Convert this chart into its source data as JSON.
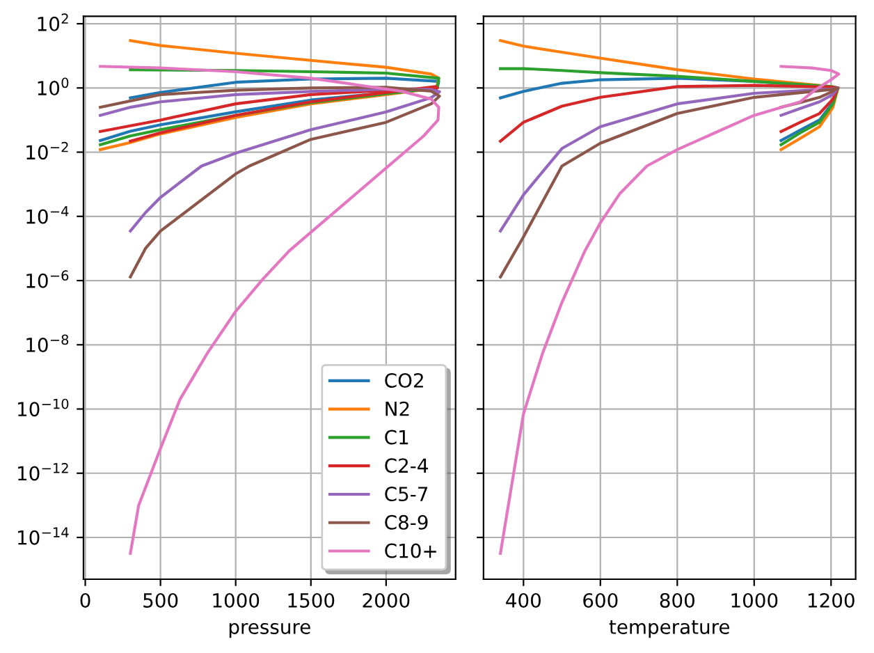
{
  "chart_data": [
    {
      "type": "line",
      "xlabel": "pressure",
      "log": "y",
      "grid": true,
      "legend": "bottom right",
      "xlim": [
        -12,
        2462
      ],
      "xticks": [
        0,
        500,
        1000,
        1500,
        2000
      ],
      "ylim": [
        5e-16,
        170
      ],
      "yticks": [
        {
          "value": 100,
          "label": "10$^{2}$"
        },
        {
          "value": 1,
          "label": "10$^{0}$"
        },
        {
          "value": 0.01,
          "label": "10$^{−2}$"
        },
        {
          "value": 0.0001,
          "label": "10$^{−4}$"
        },
        {
          "value": 1e-06,
          "label": "10$^{−6}$"
        },
        {
          "value": 1e-08,
          "label": "10$^{−8}$"
        },
        {
          "value": 1e-10,
          "label": "10$^{−10}$"
        },
        {
          "value": 1e-12,
          "label": "10$^{−12}$"
        },
        {
          "value": 1e-14,
          "label": "10$^{−14}$"
        }
      ],
      "series": [
        {
          "name": "CO2",
          "color": "#1f77b4",
          "x": [
            300,
            500,
            1000,
            1500,
            2000,
            2350,
            2340,
            2000,
            1500,
            1000,
            500,
            300,
            100
          ],
          "values": [
            0.49,
            0.72,
            1.5,
            1.9,
            2.0,
            1.6,
            1.0,
            0.71,
            0.42,
            0.18,
            0.071,
            0.045,
            0.023
          ]
        },
        {
          "name": "N2",
          "color": "#ff7f0e",
          "x": [
            300,
            500,
            1000,
            1500,
            2000,
            2300,
            2350,
            2335,
            2000,
            1500,
            1000,
            500,
            300,
            100
          ],
          "values": [
            30,
            21,
            12,
            7.2,
            4.4,
            2.7,
            2.0,
            1.0,
            0.62,
            0.32,
            0.12,
            0.037,
            0.02,
            0.012
          ]
        },
        {
          "name": "C1",
          "color": "#2ca02c",
          "x": [
            300,
            1000,
            1500,
            2000,
            2350,
            2340,
            2000,
            1500,
            1000,
            500,
            300,
            100
          ],
          "values": [
            3.7,
            3.5,
            3.2,
            2.9,
            2.0,
            1.0,
            0.66,
            0.35,
            0.14,
            0.05,
            0.032,
            0.017
          ]
        },
        {
          "name": "C2-4",
          "color": "#d62728",
          "x": [
            300,
            500,
            1000,
            1500,
            2000,
            2330,
            2340,
            2000,
            1500,
            1000,
            500,
            100
          ],
          "values": [
            0.022,
            0.04,
            0.14,
            0.37,
            0.72,
            1.1,
            1.0,
            0.85,
            0.62,
            0.32,
            0.1,
            0.044
          ]
        },
        {
          "name": "C5-7",
          "color": "#9467bd",
          "x": [
            300,
            400,
            500,
            773,
            1000,
            1500,
            2000,
            2300,
            2355,
            2300,
            2000,
            1500,
            1000,
            500,
            300,
            100
          ],
          "values": [
            3.5e-05,
            0.00013,
            0.00039,
            0.0037,
            0.0093,
            0.05,
            0.18,
            0.5,
            0.76,
            0.89,
            0.91,
            0.78,
            0.62,
            0.37,
            0.25,
            0.14
          ]
        },
        {
          "name": "C8-9",
          "color": "#8c564b",
          "x": [
            300,
            400,
            500,
            1000,
            1091,
            1500,
            2000,
            2300,
            2355,
            2300,
            2000,
            1500,
            1000,
            500,
            100
          ],
          "values": [
            1.3e-06,
            1e-05,
            3.5e-05,
            0.0021,
            0.0037,
            0.025,
            0.085,
            0.32,
            0.56,
            0.79,
            1.05,
            1.0,
            0.85,
            0.62,
            0.25
          ]
        },
        {
          "name": "C10+",
          "color": "#e377c2",
          "x": [
            300,
            355,
            500,
            630,
            813,
            1000,
            1180,
            1357,
            1500,
            2000,
            2250,
            2345,
            2350,
            2300,
            2100,
            1800,
            1500,
            1000,
            500,
            100
          ],
          "values": [
            3.2e-15,
            1e-13,
            5.9e-12,
            2e-10,
            5.6e-09,
            1.1e-07,
            1.1e-06,
            8.5e-06,
            3.2e-05,
            0.0032,
            0.032,
            0.1,
            0.25,
            0.45,
            0.79,
            1.26,
            2.0,
            3.2,
            4.2,
            4.7
          ]
        }
      ]
    },
    {
      "type": "line",
      "xlabel": "temperature",
      "log": "y",
      "grid": true,
      "tick_labels": "x",
      "xlim": [
        296,
        1264
      ],
      "xticks": [
        400,
        600,
        800,
        1000,
        1200
      ],
      "ylim": [
        5e-16,
        170
      ],
      "yticks": [
        {
          "value": 100,
          "label": null
        },
        {
          "value": 1,
          "label": null
        },
        {
          "value": 0.01,
          "label": null
        },
        {
          "value": 0.0001,
          "label": null
        },
        {
          "value": 1e-06,
          "label": null
        },
        {
          "value": 1e-08,
          "label": null
        },
        {
          "value": 1e-10,
          "label": null
        },
        {
          "value": 1e-12,
          "label": null
        },
        {
          "value": 1e-14,
          "label": null
        }
      ],
      "series": [
        {
          "color": "#1f77b4",
          "x": [
            340,
            400,
            500,
            600,
            800,
            1000,
            1200,
            1218,
            1205,
            1170,
            1120,
            1070
          ],
          "values": [
            0.49,
            0.78,
            1.4,
            1.8,
            2.0,
            1.6,
            1.1,
            1.0,
            0.35,
            0.1,
            0.049,
            0.023
          ]
        },
        {
          "color": "#ff7f0e",
          "x": [
            340,
            400,
            500,
            600,
            800,
            1000,
            1200,
            1218,
            1205,
            1170,
            1120,
            1070
          ],
          "values": [
            30,
            20,
            13,
            8.5,
            3.7,
            1.9,
            1.1,
            1.0,
            0.25,
            0.062,
            0.027,
            0.012
          ]
        },
        {
          "color": "#2ca02c",
          "x": [
            340,
            400,
            500,
            600,
            800,
            1000,
            1200,
            1218,
            1205,
            1170,
            1120,
            1070
          ],
          "values": [
            4.0,
            4.0,
            3.5,
            3.0,
            2.3,
            1.6,
            1.1,
            1.0,
            0.32,
            0.085,
            0.04,
            0.017
          ]
        },
        {
          "color": "#d62728",
          "x": [
            340,
            400,
            500,
            600,
            800,
            1000,
            1200,
            1218,
            1205,
            1170,
            1120,
            1070
          ],
          "values": [
            0.022,
            0.085,
            0.27,
            0.51,
            1.1,
            1.2,
            1.07,
            1.0,
            0.45,
            0.16,
            0.085,
            0.044
          ]
        },
        {
          "color": "#9467bd",
          "x": [
            340,
            400,
            500,
            600,
            800,
            1000,
            1200,
            1218,
            1205,
            1170,
            1120,
            1070
          ],
          "values": [
            3.5e-05,
            0.00047,
            0.013,
            0.062,
            0.32,
            0.68,
            0.93,
            1.0,
            0.63,
            0.37,
            0.23,
            0.14
          ]
        },
        {
          "color": "#8c564b",
          "x": [
            340,
            400,
            500,
            600,
            800,
            1000,
            1200,
            1218,
            1205,
            1170,
            1120,
            1070
          ],
          "values": [
            1.3e-06,
            2.3e-05,
            0.0037,
            0.019,
            0.16,
            0.51,
            0.89,
            1.0,
            0.79,
            0.51,
            0.35,
            0.25
          ]
        },
        {
          "color": "#e377c2",
          "x": [
            340,
            400,
            450,
            500,
            560,
            600,
            650,
            721,
            800,
            1000,
            1120,
            1160,
            1200,
            1220,
            1200,
            1150,
            1070
          ],
          "values": [
            3.2e-15,
            7.1e-11,
            5.6e-09,
            2.1e-07,
            8.5e-06,
            6.3e-05,
            0.0005,
            0.0037,
            0.012,
            0.14,
            0.37,
            0.89,
            1.8,
            2.7,
            3.5,
            4.2,
            4.7
          ]
        }
      ]
    }
  ]
}
